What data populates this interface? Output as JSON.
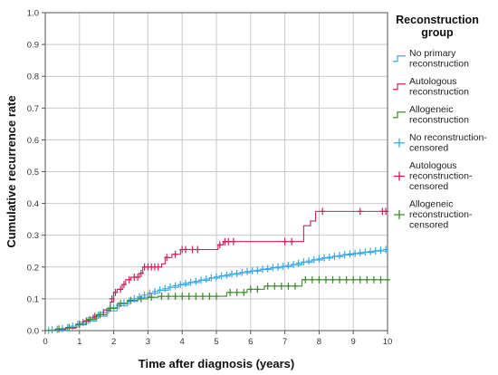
{
  "chart_data": {
    "type": "line",
    "subtype": "kaplan-meier cumulative incidence (step)",
    "xlabel": "Time after diagnosis (years)",
    "ylabel": "Cumulative recurrence rate",
    "xlim": [
      0,
      10
    ],
    "ylim": [
      0,
      1.0
    ],
    "xticks": [
      "0",
      "1",
      "2",
      "3",
      "4",
      "5",
      "6",
      "7",
      "8",
      "9",
      "10"
    ],
    "yticks": [
      "0.0",
      "0.1",
      "0.2",
      "0.3",
      "0.4",
      "0.5",
      "0.6",
      "0.7",
      "0.8",
      "0.9",
      "1.0"
    ],
    "grid": true,
    "legend": {
      "title": [
        "Reconstruction",
        "group"
      ],
      "placement": "right",
      "entries": [
        {
          "series": "no_primary",
          "kind": "line",
          "text": [
            "No primary",
            "reconstruction"
          ]
        },
        {
          "series": "autologous",
          "kind": "line",
          "text": [
            "Autologous",
            "reconstruction"
          ]
        },
        {
          "series": "allogeneic",
          "kind": "line",
          "text": [
            "Allogeneic",
            "reconstruction"
          ]
        },
        {
          "series": "no_primary",
          "kind": "censor",
          "text": [
            "No reconstruction-",
            "censored"
          ]
        },
        {
          "series": "autologous",
          "kind": "censor",
          "text": [
            "Autologous",
            "reconstruction-",
            "censored"
          ]
        },
        {
          "series": "allogeneic",
          "kind": "censor",
          "text": [
            "Allogeneic",
            "reconstruction-",
            "censored"
          ]
        }
      ]
    },
    "series": [
      {
        "id": "no_primary",
        "color": "#3aa8e8",
        "steps": [
          [
            0,
            0
          ],
          [
            0.3,
            0.003
          ],
          [
            0.6,
            0.008
          ],
          [
            0.9,
            0.018
          ],
          [
            1.2,
            0.03
          ],
          [
            1.5,
            0.045
          ],
          [
            1.8,
            0.062
          ],
          [
            2.1,
            0.078
          ],
          [
            2.4,
            0.092
          ],
          [
            2.7,
            0.105
          ],
          [
            3.0,
            0.117
          ],
          [
            3.3,
            0.127
          ],
          [
            3.6,
            0.136
          ],
          [
            3.9,
            0.144
          ],
          [
            4.2,
            0.151
          ],
          [
            4.5,
            0.158
          ],
          [
            4.8,
            0.165
          ],
          [
            5.1,
            0.171
          ],
          [
            5.4,
            0.177
          ],
          [
            5.7,
            0.182
          ],
          [
            6.0,
            0.187
          ],
          [
            6.3,
            0.192
          ],
          [
            6.6,
            0.197
          ],
          [
            6.9,
            0.201
          ],
          [
            7.2,
            0.207
          ],
          [
            7.5,
            0.215
          ],
          [
            7.8,
            0.222
          ],
          [
            8.1,
            0.228
          ],
          [
            8.4,
            0.233
          ],
          [
            8.7,
            0.238
          ],
          [
            9.0,
            0.242
          ],
          [
            9.3,
            0.246
          ],
          [
            9.6,
            0.25
          ],
          [
            10.0,
            0.255
          ]
        ],
        "censor": [
          [
            0.1,
            0.001
          ],
          [
            0.2,
            0.002
          ],
          [
            0.35,
            0.004
          ],
          [
            0.5,
            0.006
          ],
          [
            0.65,
            0.009
          ],
          [
            0.8,
            0.014
          ],
          [
            0.95,
            0.02
          ],
          [
            1.1,
            0.026
          ],
          [
            1.25,
            0.032
          ],
          [
            1.4,
            0.04
          ],
          [
            1.55,
            0.048
          ],
          [
            1.7,
            0.057
          ],
          [
            1.85,
            0.064
          ],
          [
            2.0,
            0.072
          ],
          [
            2.15,
            0.079
          ],
          [
            2.3,
            0.087
          ],
          [
            2.45,
            0.093
          ],
          [
            2.6,
            0.1
          ],
          [
            2.75,
            0.106
          ],
          [
            2.9,
            0.112
          ],
          [
            3.05,
            0.118
          ],
          [
            3.2,
            0.123
          ],
          [
            3.35,
            0.128
          ],
          [
            3.5,
            0.132
          ],
          [
            3.65,
            0.137
          ],
          [
            3.8,
            0.141
          ],
          [
            3.95,
            0.145
          ],
          [
            4.1,
            0.149
          ],
          [
            4.25,
            0.152
          ],
          [
            4.4,
            0.155
          ],
          [
            4.55,
            0.159
          ],
          [
            4.7,
            0.162
          ],
          [
            4.85,
            0.166
          ],
          [
            5.0,
            0.169
          ],
          [
            5.15,
            0.172
          ],
          [
            5.3,
            0.175
          ],
          [
            5.45,
            0.178
          ],
          [
            5.6,
            0.18
          ],
          [
            5.75,
            0.183
          ],
          [
            5.9,
            0.186
          ],
          [
            6.05,
            0.188
          ],
          [
            6.2,
            0.19
          ],
          [
            6.35,
            0.193
          ],
          [
            6.5,
            0.195
          ],
          [
            6.65,
            0.198
          ],
          [
            6.8,
            0.2
          ],
          [
            6.95,
            0.202
          ],
          [
            7.1,
            0.205
          ],
          [
            7.25,
            0.208
          ],
          [
            7.4,
            0.212
          ],
          [
            7.55,
            0.216
          ],
          [
            7.7,
            0.219
          ],
          [
            7.85,
            0.223
          ],
          [
            8.0,
            0.226
          ],
          [
            8.15,
            0.229
          ],
          [
            8.3,
            0.231
          ],
          [
            8.45,
            0.234
          ],
          [
            8.6,
            0.236
          ],
          [
            8.75,
            0.239
          ],
          [
            8.9,
            0.241
          ],
          [
            9.05,
            0.243
          ],
          [
            9.2,
            0.245
          ],
          [
            9.35,
            0.247
          ],
          [
            9.5,
            0.249
          ],
          [
            9.65,
            0.251
          ],
          [
            9.8,
            0.253
          ],
          [
            9.95,
            0.255
          ]
        ]
      },
      {
        "id": "autologous",
        "color": "#c8235f",
        "steps": [
          [
            0,
            0
          ],
          [
            0.3,
            0.005
          ],
          [
            0.6,
            0.008
          ],
          [
            0.9,
            0.02
          ],
          [
            1.1,
            0.03
          ],
          [
            1.3,
            0.04
          ],
          [
            1.5,
            0.05
          ],
          [
            1.7,
            0.065
          ],
          [
            1.9,
            0.09
          ],
          [
            2.0,
            0.12
          ],
          [
            2.1,
            0.13
          ],
          [
            2.25,
            0.145
          ],
          [
            2.35,
            0.16
          ],
          [
            2.5,
            0.168
          ],
          [
            2.75,
            0.18
          ],
          [
            2.85,
            0.2
          ],
          [
            3.4,
            0.21
          ],
          [
            3.5,
            0.23
          ],
          [
            3.7,
            0.24
          ],
          [
            3.95,
            0.255
          ],
          [
            5.05,
            0.27
          ],
          [
            5.2,
            0.28
          ],
          [
            7.55,
            0.33
          ],
          [
            7.75,
            0.345
          ],
          [
            7.9,
            0.375
          ],
          [
            10.0,
            0.375
          ]
        ],
        "censor": [
          [
            1.0,
            0.02
          ],
          [
            1.2,
            0.03
          ],
          [
            1.45,
            0.045
          ],
          [
            1.6,
            0.05
          ],
          [
            1.95,
            0.1
          ],
          [
            2.05,
            0.12
          ],
          [
            2.2,
            0.13
          ],
          [
            2.3,
            0.145
          ],
          [
            2.45,
            0.16
          ],
          [
            2.6,
            0.168
          ],
          [
            2.7,
            0.168
          ],
          [
            2.8,
            0.18
          ],
          [
            2.9,
            0.2
          ],
          [
            3.0,
            0.2
          ],
          [
            3.1,
            0.2
          ],
          [
            3.2,
            0.2
          ],
          [
            3.3,
            0.2
          ],
          [
            3.55,
            0.23
          ],
          [
            3.8,
            0.24
          ],
          [
            4.0,
            0.255
          ],
          [
            4.1,
            0.255
          ],
          [
            4.3,
            0.255
          ],
          [
            4.45,
            0.255
          ],
          [
            5.1,
            0.27
          ],
          [
            5.25,
            0.28
          ],
          [
            5.35,
            0.28
          ],
          [
            5.5,
            0.28
          ],
          [
            7.0,
            0.28
          ],
          [
            7.2,
            0.28
          ],
          [
            8.1,
            0.375
          ],
          [
            9.2,
            0.375
          ],
          [
            9.85,
            0.375
          ],
          [
            9.95,
            0.375
          ]
        ]
      },
      {
        "id": "allogeneic",
        "color": "#3c8a2e",
        "steps": [
          [
            0,
            0
          ],
          [
            0.3,
            0.005
          ],
          [
            0.6,
            0.01
          ],
          [
            0.9,
            0.02
          ],
          [
            1.2,
            0.035
          ],
          [
            1.5,
            0.05
          ],
          [
            1.8,
            0.07
          ],
          [
            2.1,
            0.085
          ],
          [
            2.4,
            0.095
          ],
          [
            2.7,
            0.1
          ],
          [
            3.0,
            0.105
          ],
          [
            3.3,
            0.108
          ],
          [
            5.3,
            0.12
          ],
          [
            5.9,
            0.13
          ],
          [
            6.4,
            0.14
          ],
          [
            7.5,
            0.16
          ],
          [
            10.0,
            0.16
          ]
        ],
        "censor": [
          [
            0.4,
            0.005
          ],
          [
            0.7,
            0.01
          ],
          [
            1.0,
            0.02
          ],
          [
            1.3,
            0.035
          ],
          [
            1.6,
            0.05
          ],
          [
            1.9,
            0.07
          ],
          [
            2.2,
            0.085
          ],
          [
            2.5,
            0.095
          ],
          [
            2.8,
            0.1
          ],
          [
            3.1,
            0.105
          ],
          [
            3.4,
            0.108
          ],
          [
            3.6,
            0.108
          ],
          [
            3.8,
            0.108
          ],
          [
            4.0,
            0.108
          ],
          [
            4.2,
            0.108
          ],
          [
            4.4,
            0.108
          ],
          [
            4.6,
            0.108
          ],
          [
            4.8,
            0.108
          ],
          [
            5.0,
            0.108
          ],
          [
            5.4,
            0.12
          ],
          [
            5.6,
            0.12
          ],
          [
            5.8,
            0.12
          ],
          [
            6.0,
            0.13
          ],
          [
            6.2,
            0.13
          ],
          [
            6.5,
            0.14
          ],
          [
            6.7,
            0.14
          ],
          [
            6.9,
            0.14
          ],
          [
            7.1,
            0.14
          ],
          [
            7.3,
            0.14
          ],
          [
            7.6,
            0.16
          ],
          [
            7.8,
            0.16
          ],
          [
            8.0,
            0.16
          ],
          [
            8.2,
            0.16
          ],
          [
            8.4,
            0.16
          ],
          [
            8.6,
            0.16
          ],
          [
            8.8,
            0.16
          ],
          [
            9.0,
            0.16
          ],
          [
            9.2,
            0.16
          ],
          [
            9.4,
            0.16
          ],
          [
            9.6,
            0.16
          ],
          [
            9.8,
            0.16
          ],
          [
            10.0,
            0.16
          ]
        ]
      }
    ]
  }
}
